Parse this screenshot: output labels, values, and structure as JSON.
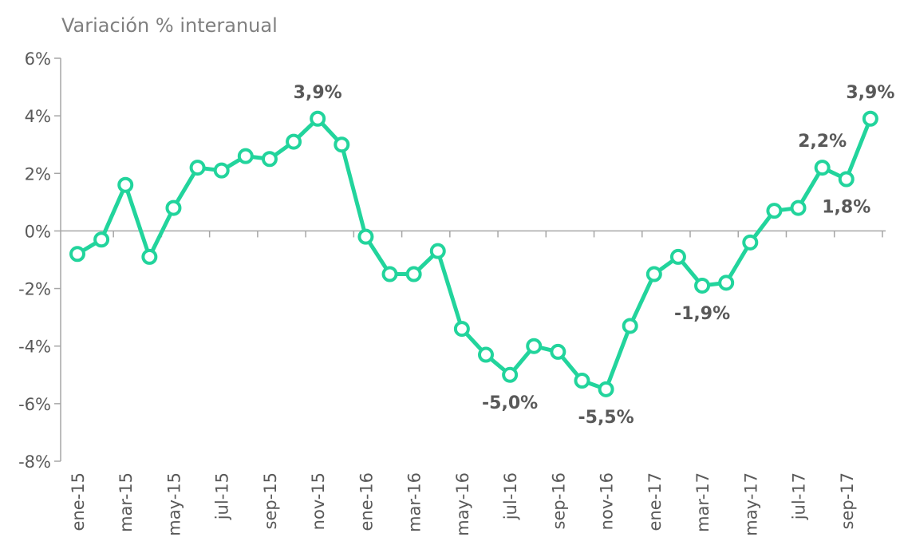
{
  "chart_data": {
    "type": "line",
    "title": "Variación % interanual",
    "categories": [
      "ene-15",
      null,
      "mar-15",
      null,
      "may-15",
      null,
      "jul-15",
      null,
      "sep-15",
      null,
      "nov-15",
      null,
      "ene-16",
      null,
      "mar-16",
      null,
      "may-16",
      null,
      "jul-16",
      null,
      "sep-16",
      null,
      "nov-16",
      null,
      "ene-17",
      null,
      "mar-17",
      null,
      "may-17",
      null,
      "jul-17",
      null,
      "sep-17",
      null
    ],
    "series": [
      {
        "name": "Variación % interanual",
        "color": "#22d49c",
        "values": [
          -0.8,
          -0.3,
          1.6,
          -0.9,
          0.8,
          2.2,
          2.1,
          2.6,
          2.5,
          3.1,
          3.9,
          3.0,
          -0.2,
          -1.5,
          -1.5,
          -0.7,
          -3.4,
          -4.3,
          -5.0,
          -4.0,
          -4.2,
          -5.2,
          -5.5,
          -3.3,
          -1.5,
          -0.9,
          -1.9,
          -1.8,
          -0.4,
          0.7,
          0.8,
          2.2,
          1.8,
          3.9
        ],
        "value_labels": [
          null,
          null,
          null,
          null,
          null,
          null,
          null,
          null,
          null,
          null,
          "3,9%",
          null,
          null,
          null,
          null,
          null,
          null,
          null,
          "-5,0%",
          null,
          null,
          null,
          "-5,5%",
          null,
          null,
          null,
          "-1,9%",
          null,
          null,
          null,
          null,
          "2,2%",
          "1,8%",
          "3,9%"
        ]
      }
    ],
    "ylim": [
      -8,
      6
    ],
    "yticks": [
      {
        "value": -8,
        "label": "-8%"
      },
      {
        "value": -6,
        "label": "-6%"
      },
      {
        "value": -4,
        "label": "-4%"
      },
      {
        "value": -2,
        "label": "-2%"
      },
      {
        "value": 0,
        "label": "0%"
      },
      {
        "value": 2,
        "label": "2%"
      },
      {
        "value": 4,
        "label": "4%"
      },
      {
        "value": 6,
        "label": "6%"
      }
    ]
  }
}
